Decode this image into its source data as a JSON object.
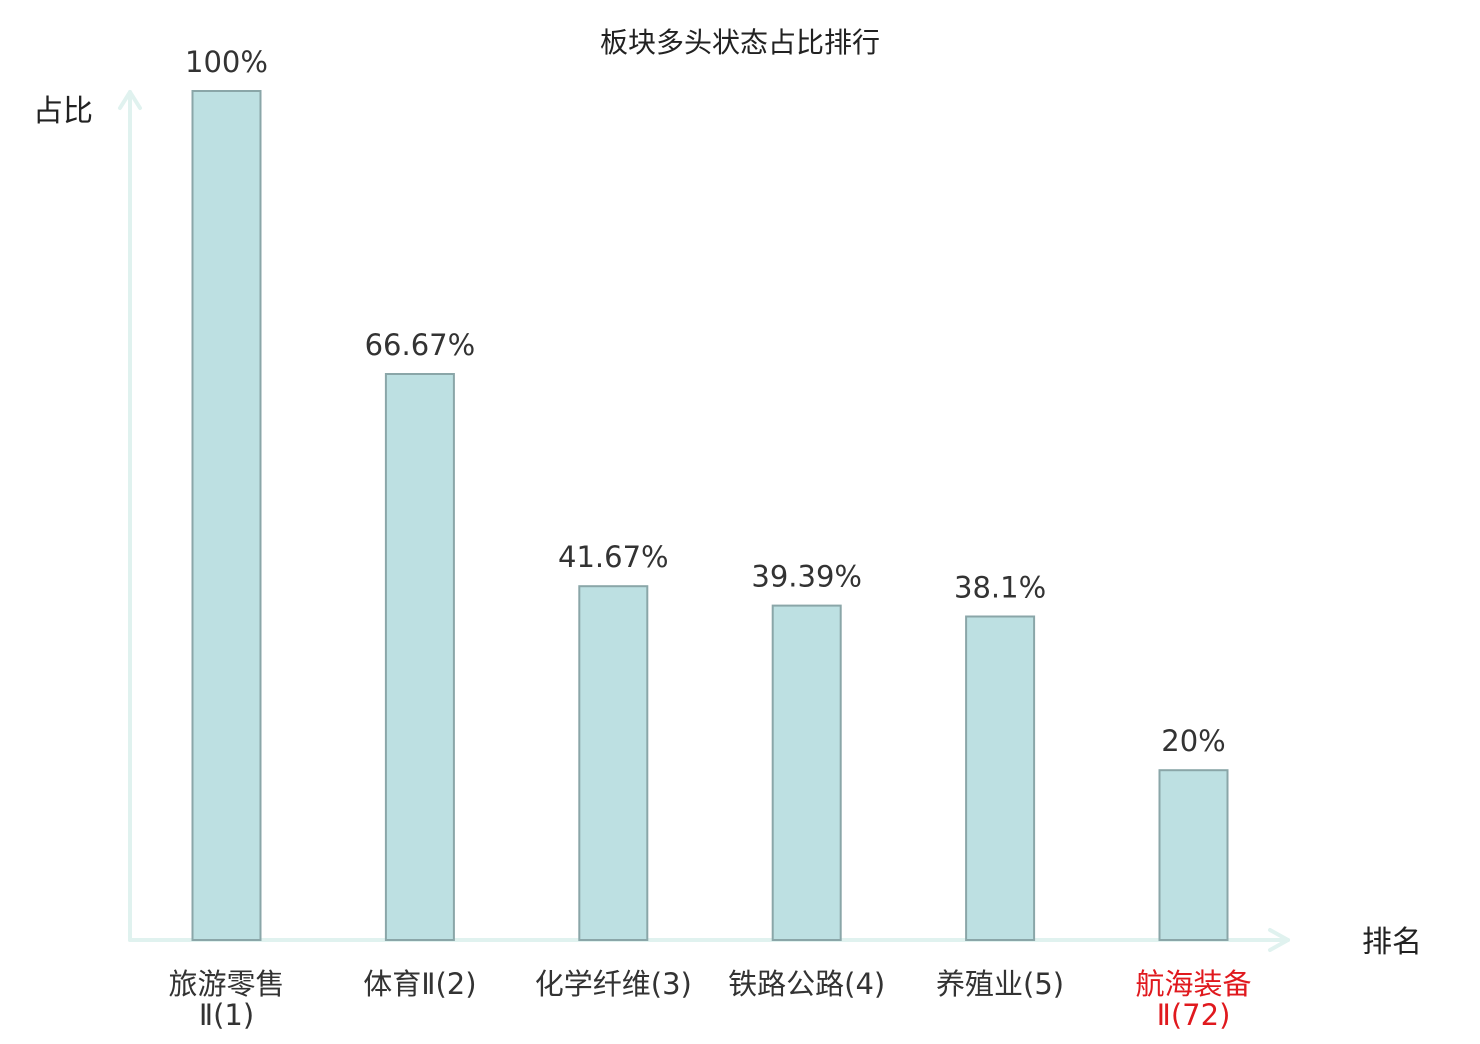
{
  "chart_data": {
    "type": "bar",
    "title": "板块多头状态占比排行",
    "ylabel": "占比",
    "xlabel": "排名",
    "ylim": [
      0,
      100
    ],
    "grid": false,
    "legend": "none",
    "categories": [
      {
        "name_lines": [
          "旅游零售",
          "Ⅱ(1)"
        ],
        "highlight": false
      },
      {
        "name_lines": [
          "体育Ⅱ(2)"
        ],
        "highlight": false
      },
      {
        "name_lines": [
          "化学纤维(3)"
        ],
        "highlight": false
      },
      {
        "name_lines": [
          "铁路公路(4)"
        ],
        "highlight": false
      },
      {
        "name_lines": [
          "养殖业(5)"
        ],
        "highlight": false
      },
      {
        "name_lines": [
          "航海装备",
          "Ⅱ(72)"
        ],
        "highlight": true
      }
    ],
    "values": [
      100,
      66.67,
      41.67,
      39.39,
      38.1,
      20
    ],
    "value_labels": [
      "100%",
      "66.67%",
      "41.67%",
      "39.39%",
      "38.1%",
      "20%"
    ]
  },
  "colors": {
    "bar_fill": "#bde0e2",
    "bar_stroke": "#8aa6a8",
    "axis": "#e0f2ef",
    "text": "#333333",
    "title_text": "#222222",
    "highlight_text": "#e0191e"
  }
}
